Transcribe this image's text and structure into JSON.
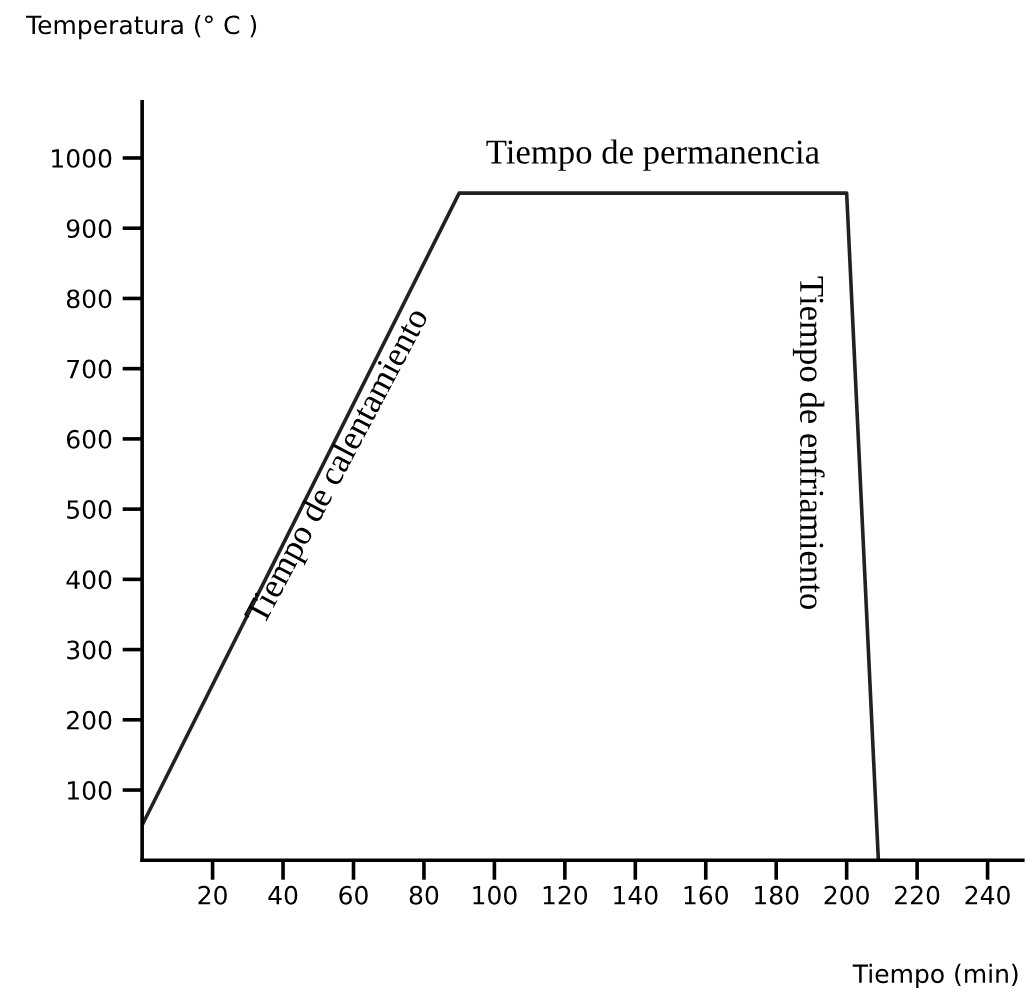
{
  "chart_data": {
    "type": "line",
    "ylabel": "Temperatura (° C )",
    "xlabel": "Tiempo (min)",
    "x": [
      0,
      90,
      200,
      209
    ],
    "series": [
      {
        "color": "#222222",
        "values": [
          50,
          950,
          950,
          0
        ]
      }
    ],
    "xlim": [
      0,
      250
    ],
    "ylim": [
      0,
      1080
    ],
    "xticks": [
      20,
      40,
      60,
      80,
      100,
      120,
      140,
      160,
      180,
      200,
      220,
      240
    ],
    "yticks": [
      100,
      200,
      300,
      400,
      500,
      600,
      700,
      800,
      900,
      1000
    ],
    "grid": false,
    "marker": "none",
    "line_style": "solid",
    "annotations": [
      {
        "text": "Tiempo de permanencia",
        "x": 145,
        "y": 950
      },
      {
        "text": "Tiempo de calentamiento",
        "x": 48,
        "y": 560
      },
      "Tiempo de enfriamiento"
    ]
  }
}
